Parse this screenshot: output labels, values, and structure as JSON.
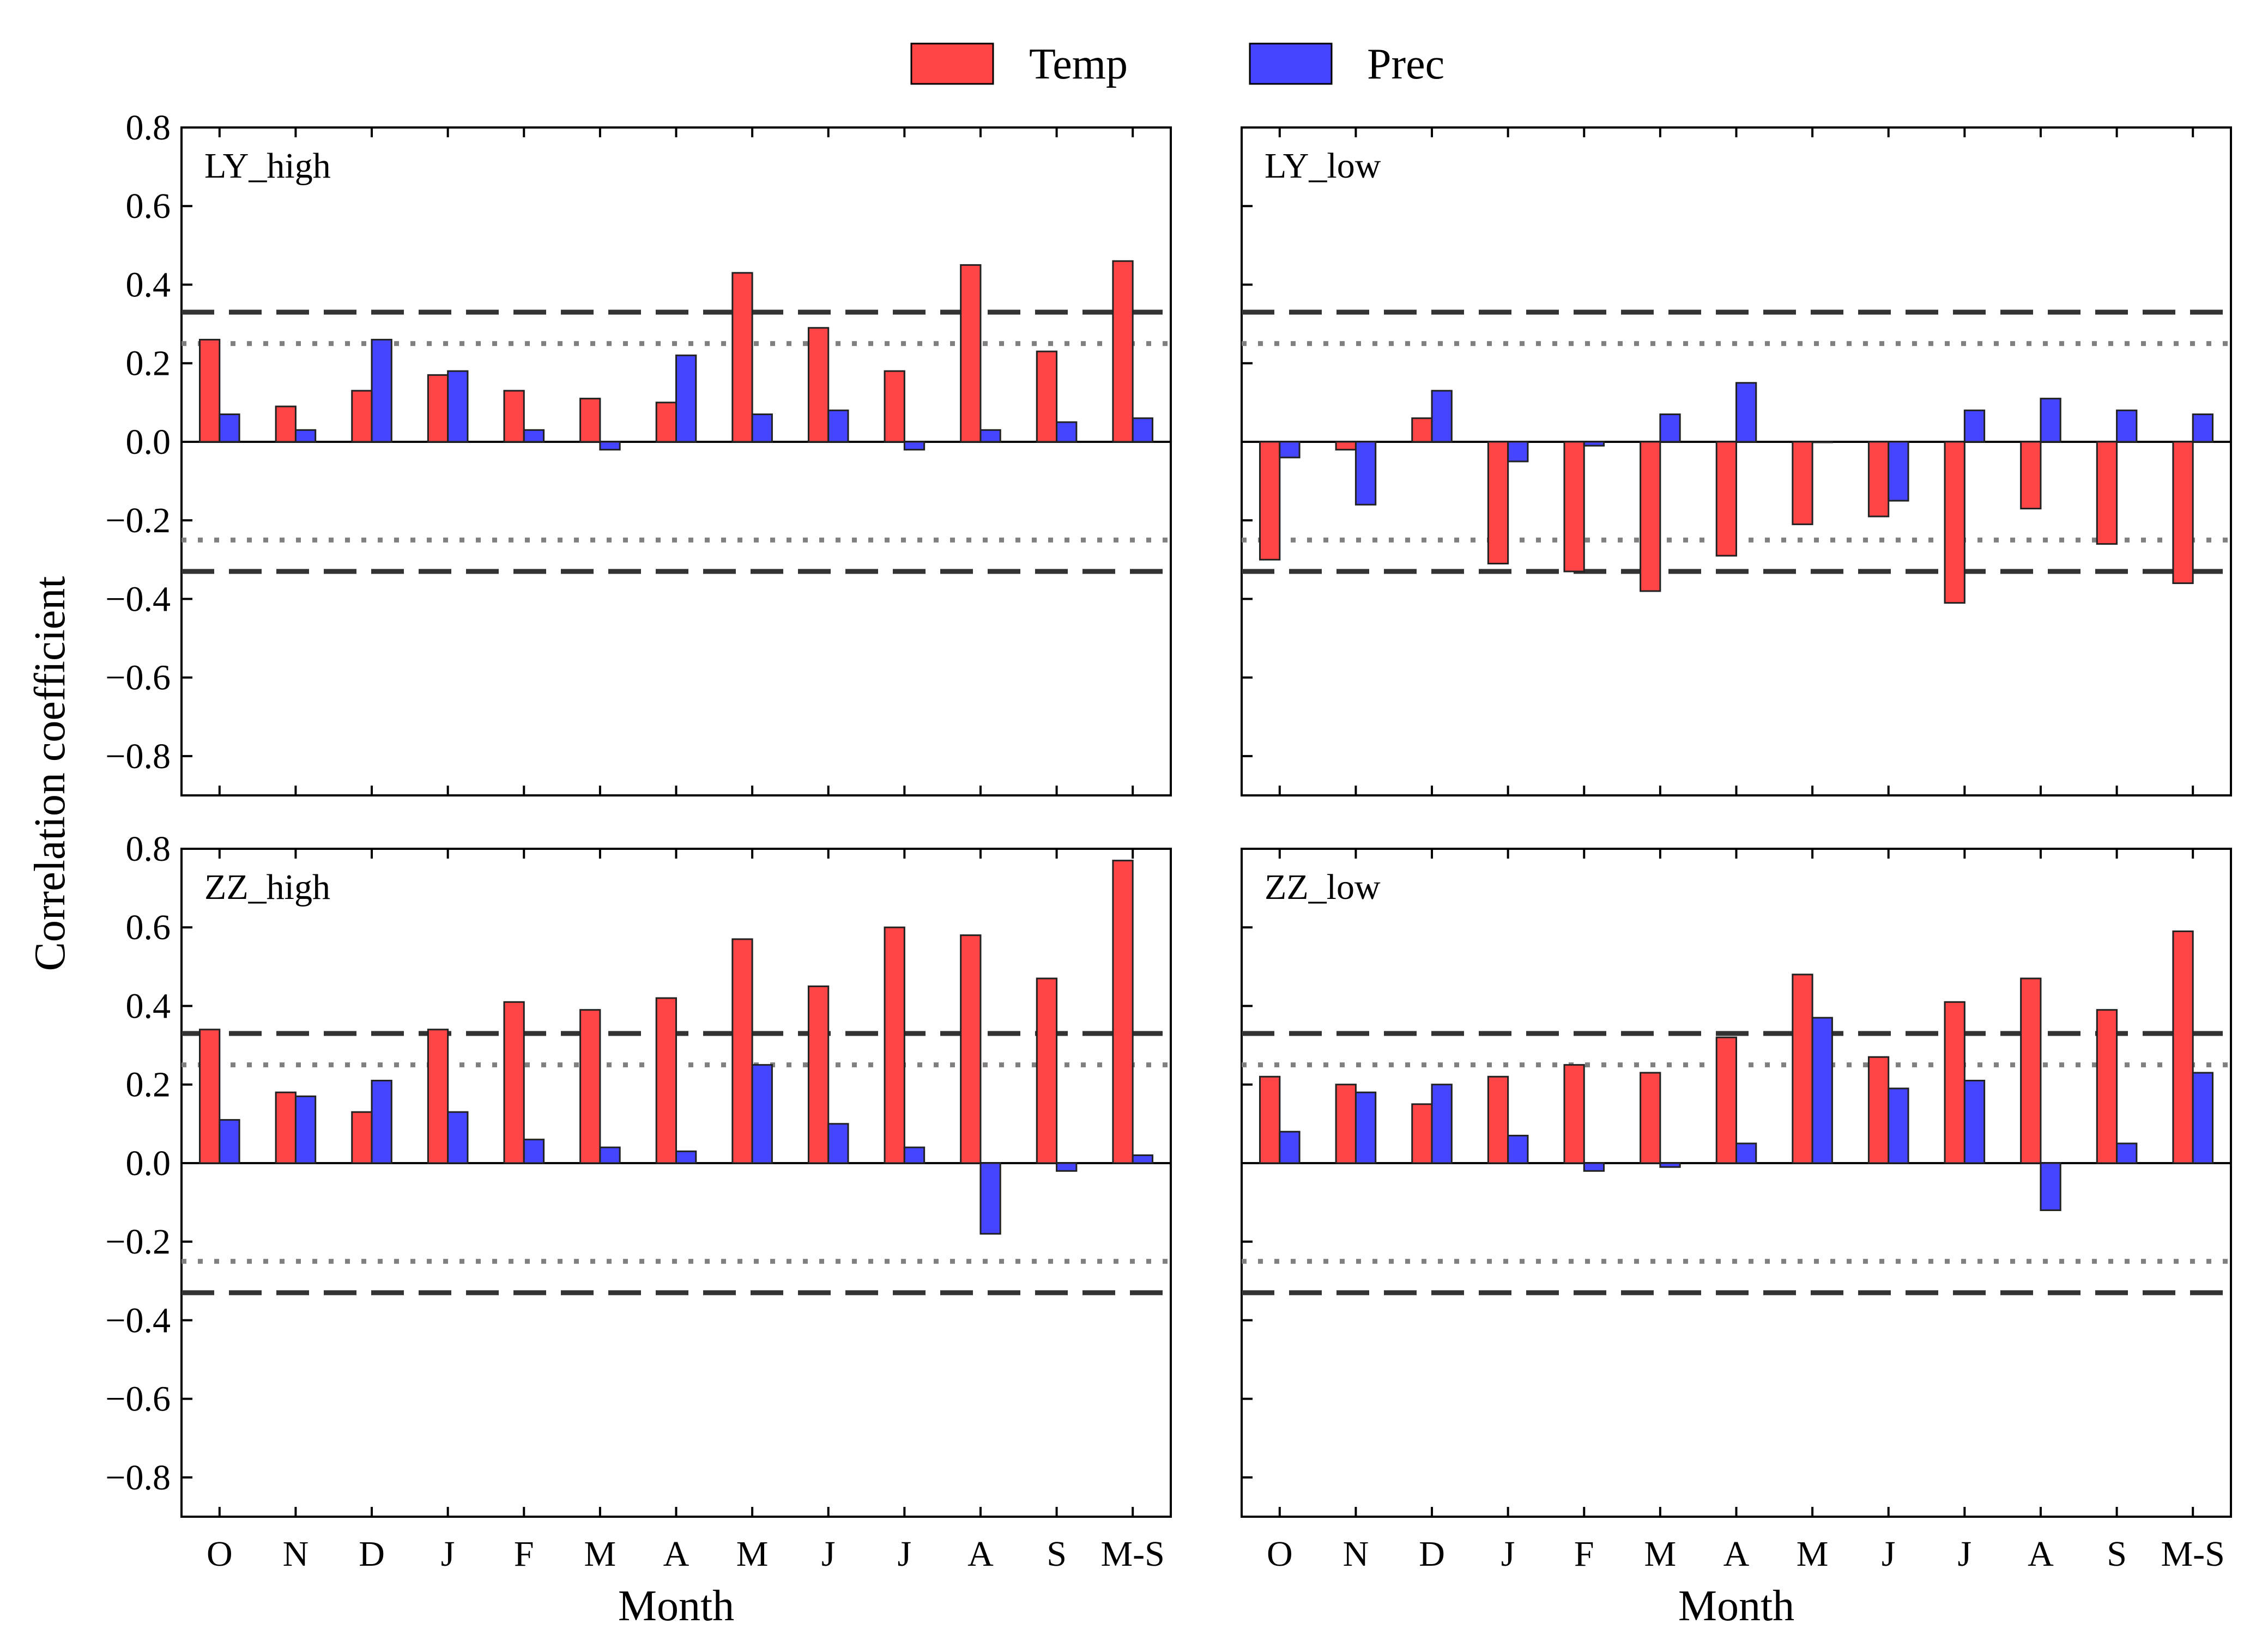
{
  "figure": {
    "ylabel": "Correlation coefficient",
    "legend": [
      {
        "name": "Temp",
        "color": "#ff4545"
      },
      {
        "name": "Prec",
        "color": "#4545ff"
      }
    ]
  },
  "chart_data": {
    "type": "bar",
    "categories": [
      "O",
      "N",
      "D",
      "J",
      "F",
      "M",
      "A",
      "M",
      "J",
      "J",
      "A",
      "S",
      "M-S"
    ],
    "xlabel": "Month",
    "ylabel": "Correlation coefficient",
    "ylim": [
      -0.9,
      0.8
    ],
    "yticks": [
      0.8,
      0.6,
      0.4,
      0.2,
      0.0,
      -0.2,
      -0.4,
      -0.6,
      -0.8
    ],
    "ytick_labels": [
      "0.8",
      "0.6",
      "0.4",
      "0.2",
      "0.0",
      "−0.2",
      "−0.4",
      "−0.6",
      "−0.8"
    ],
    "colors": {
      "Temp": "#ff4545",
      "Prec": "#4545ff",
      "dashed": "#333333",
      "dotted": "#808080"
    },
    "panels": [
      {
        "name": "LY_high",
        "threshold_dashed": [
          0.33,
          -0.33
        ],
        "threshold_dotted": [
          0.25,
          -0.25
        ],
        "series": [
          {
            "name": "Temp",
            "values": [
              0.26,
              0.09,
              0.13,
              0.17,
              0.13,
              0.11,
              0.1,
              0.43,
              0.29,
              0.18,
              0.45,
              0.23,
              0.46
            ]
          },
          {
            "name": "Prec",
            "values": [
              0.07,
              0.03,
              0.26,
              0.18,
              0.03,
              -0.02,
              0.22,
              0.07,
              0.08,
              -0.02,
              0.03,
              0.05,
              0.06
            ]
          }
        ]
      },
      {
        "name": "LY_low",
        "threshold_dashed": [
          0.33,
          -0.33
        ],
        "threshold_dotted": [
          0.25,
          -0.25
        ],
        "series": [
          {
            "name": "Temp",
            "values": [
              -0.3,
              -0.02,
              0.06,
              -0.31,
              -0.33,
              -0.38,
              -0.29,
              -0.21,
              -0.19,
              -0.41,
              -0.17,
              -0.26,
              -0.36
            ]
          },
          {
            "name": "Prec",
            "values": [
              -0.04,
              -0.16,
              0.13,
              -0.05,
              -0.01,
              0.07,
              0.15,
              0.0,
              -0.15,
              0.08,
              0.11,
              0.08,
              0.07
            ]
          }
        ]
      },
      {
        "name": "ZZ_high",
        "threshold_dashed": [
          0.33,
          -0.33
        ],
        "threshold_dotted": [
          0.25,
          -0.25
        ],
        "series": [
          {
            "name": "Temp",
            "values": [
              0.34,
              0.18,
              0.13,
              0.34,
              0.41,
              0.39,
              0.42,
              0.57,
              0.45,
              0.6,
              0.58,
              0.47,
              0.77
            ]
          },
          {
            "name": "Prec",
            "values": [
              0.11,
              0.17,
              0.21,
              0.13,
              0.06,
              0.04,
              0.03,
              0.25,
              0.1,
              0.04,
              -0.18,
              -0.02,
              0.02
            ]
          }
        ]
      },
      {
        "name": "ZZ_low",
        "threshold_dashed": [
          0.33,
          -0.33
        ],
        "threshold_dotted": [
          0.25,
          -0.25
        ],
        "series": [
          {
            "name": "Temp",
            "values": [
              0.22,
              0.2,
              0.15,
              0.22,
              0.25,
              0.23,
              0.32,
              0.48,
              0.27,
              0.41,
              0.47,
              0.39,
              0.59
            ]
          },
          {
            "name": "Prec",
            "values": [
              0.08,
              0.18,
              0.2,
              0.07,
              -0.02,
              -0.01,
              0.05,
              0.37,
              0.19,
              0.21,
              -0.12,
              0.05,
              0.23
            ]
          }
        ]
      }
    ]
  }
}
